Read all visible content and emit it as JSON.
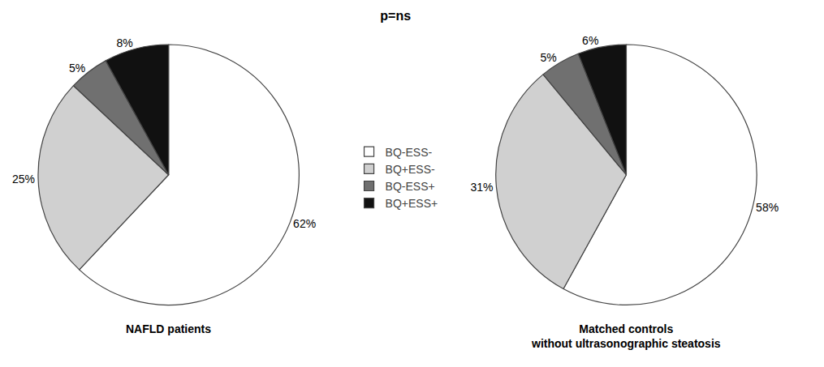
{
  "chart_data": {
    "type": "pie",
    "title": "p=ns",
    "categories": [
      "BQ-ESS-",
      "BQ+ESS-",
      "BQ-ESS+",
      "BQ+ESS+"
    ],
    "colors": [
      "#ffffff",
      "#d0d0d0",
      "#707070",
      "#111111"
    ],
    "series": [
      {
        "name": "NAFLD patients",
        "values": [
          62,
          25,
          5,
          8
        ],
        "value_labels": [
          "62%",
          "25%",
          "5%",
          "8%"
        ]
      },
      {
        "name": "Matched controls\nwithout ultrasonographic steatosis",
        "values": [
          58,
          31,
          5,
          6
        ],
        "value_labels": [
          "58%",
          "31%",
          "5%",
          "6%"
        ]
      }
    ],
    "legend": "center",
    "data_labels": true
  }
}
